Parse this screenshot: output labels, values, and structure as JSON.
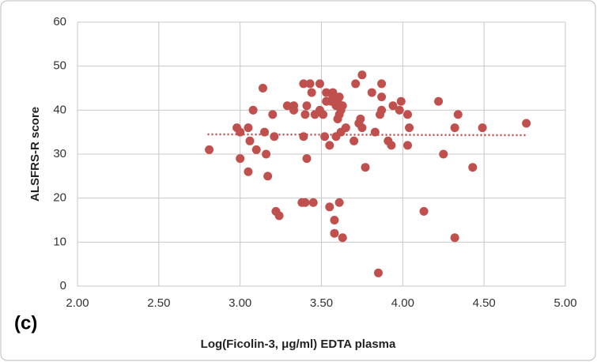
{
  "chart_data": {
    "type": "scatter",
    "xlabel": "Log(Ficolin-3, μg/ml) EDTA plasma",
    "ylabel": "ALSFRS-R score",
    "annotation": "(c)",
    "color": "#c0504d",
    "grid": true,
    "xlim": [
      2.0,
      5.0
    ],
    "xticks": [
      {
        "value": 2,
        "label": "2.00"
      },
      {
        "value": 2.5,
        "label": "2.50"
      },
      {
        "value": 3,
        "label": "3.00"
      },
      {
        "value": 3.5,
        "label": "3.50"
      },
      {
        "value": 4,
        "label": "4.00"
      },
      {
        "value": 4.5,
        "label": "4.50"
      },
      {
        "value": 5,
        "label": "5.00"
      }
    ],
    "ylim": [
      0,
      60
    ],
    "yticks": [
      0,
      10,
      20,
      30,
      40,
      50,
      60
    ],
    "trendline": {
      "x": [
        2.8,
        4.76
      ],
      "y": [
        34.5,
        34.3
      ]
    },
    "x": [
      2.81,
      2.98,
      3.0,
      3.0,
      3.05,
      3.05,
      3.06,
      3.08,
      3.1,
      3.14,
      3.15,
      3.16,
      3.17,
      3.2,
      3.21,
      3.22,
      3.24,
      3.29,
      3.33,
      3.33,
      3.38,
      3.39,
      3.39,
      3.4,
      3.4,
      3.41,
      3.41,
      3.43,
      3.44,
      3.45,
      3.46,
      3.49,
      3.49,
      3.51,
      3.52,
      3.53,
      3.53,
      3.55,
      3.55,
      3.56,
      3.57,
      3.57,
      3.58,
      3.58,
      3.59,
      3.59,
      3.6,
      3.6,
      3.61,
      3.61,
      3.61,
      3.62,
      3.62,
      3.63,
      3.63,
      3.65,
      3.7,
      3.71,
      3.73,
      3.74,
      3.75,
      3.75,
      3.77,
      3.81,
      3.83,
      3.85,
      3.86,
      3.87,
      3.87,
      3.87,
      3.91,
      3.93,
      3.94,
      3.98,
      3.99,
      4.03,
      4.03,
      4.04,
      4.13,
      4.22,
      4.25,
      4.32,
      4.32,
      4.34,
      4.43,
      4.49,
      4.76
    ],
    "y": [
      31,
      36,
      29,
      35,
      36,
      26,
      33,
      40,
      31,
      45,
      35,
      30,
      25,
      39,
      34,
      17,
      16,
      41,
      41,
      40,
      19,
      46,
      34,
      39,
      19,
      41,
      29,
      46,
      44,
      19,
      39,
      46,
      40,
      39,
      34,
      42,
      44,
      32,
      18,
      42,
      44,
      43,
      12,
      15,
      34,
      41,
      38,
      42,
      39,
      43,
      19,
      35,
      40,
      11,
      41,
      36,
      33,
      46,
      37,
      38,
      48,
      36,
      27,
      44,
      35,
      3,
      39,
      43,
      46,
      40,
      33,
      32,
      41,
      40,
      42,
      39,
      32,
      36,
      17,
      42,
      30,
      36,
      11,
      39,
      27,
      36,
      37
    ]
  }
}
